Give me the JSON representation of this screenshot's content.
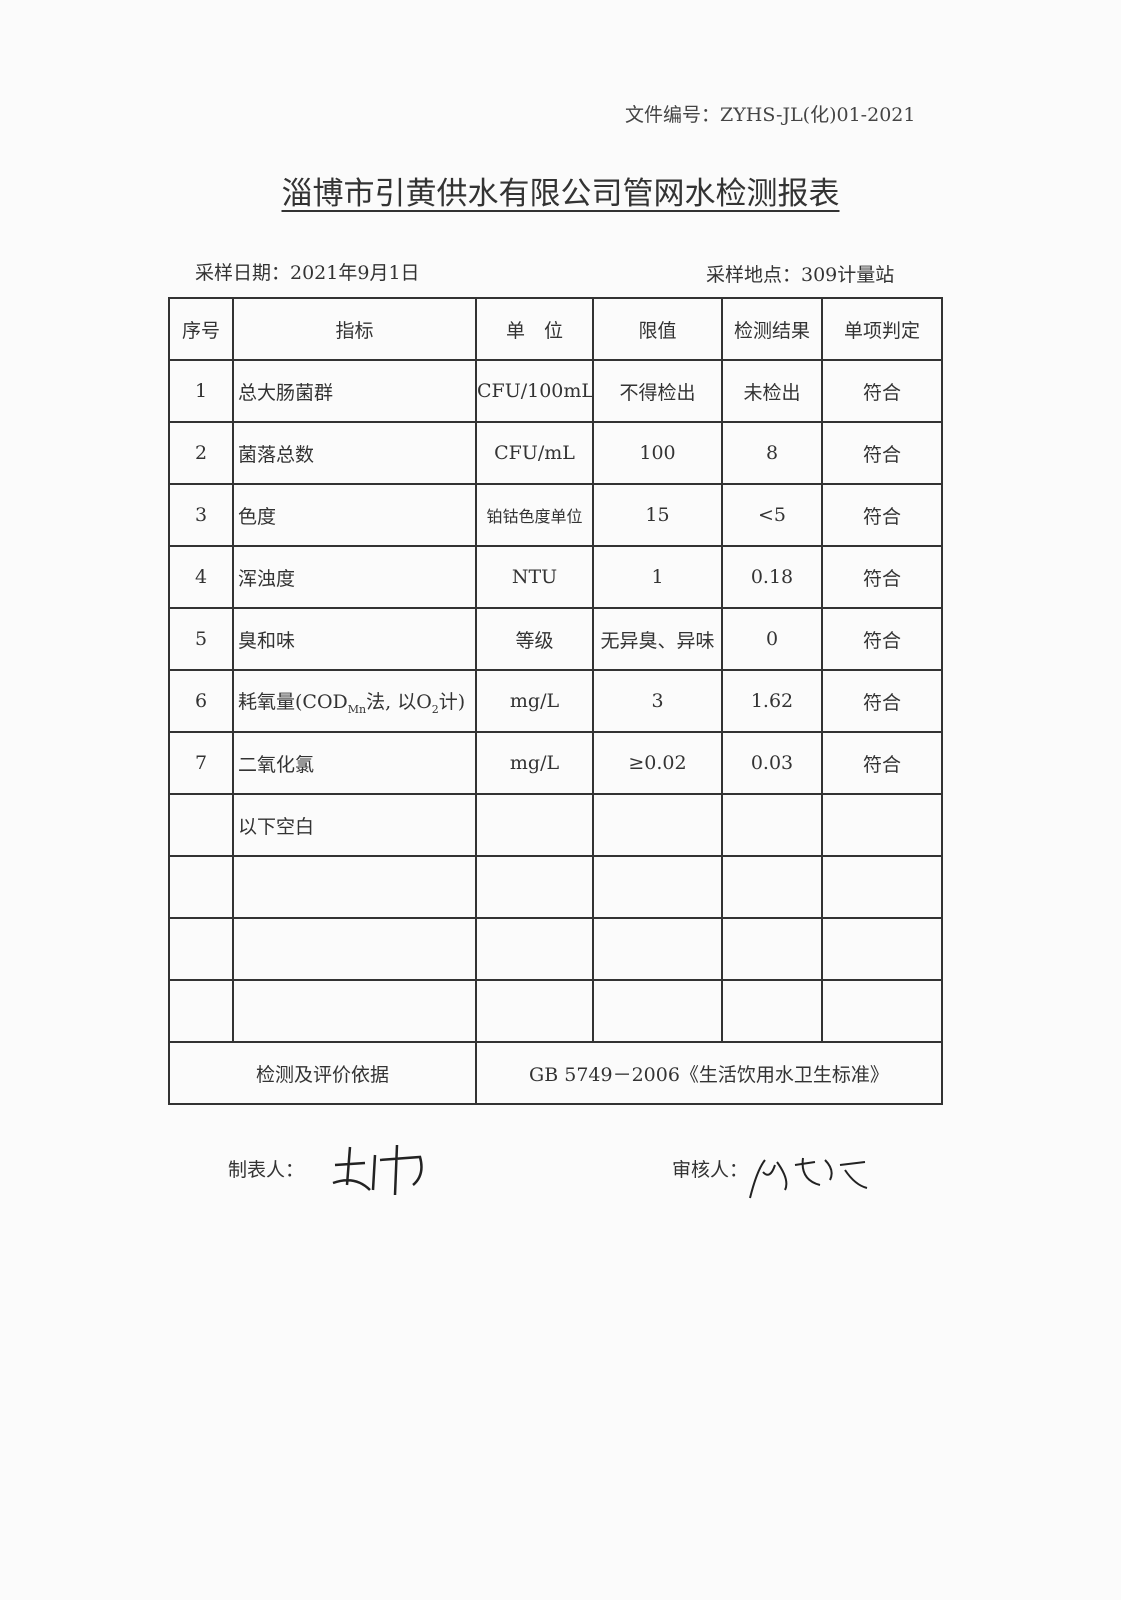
{
  "document_number": "文件编号：ZYHS-JL(化)01-2021",
  "title": "淄博市引黄供水有限公司管网水检测报表",
  "sampling_date": "采样日期：2021年9月1日",
  "sampling_site": "采样地点：309计量站",
  "table": {
    "headers": [
      "序号",
      "指标",
      "单　位",
      "限值",
      "检测结果",
      "单项判定"
    ],
    "rows": [
      {
        "no": "1",
        "indicator": "总大肠菌群",
        "unit": "CFU/100mL",
        "limit": "不得检出",
        "result": "未检出",
        "judgement": "符合"
      },
      {
        "no": "2",
        "indicator": "菌落总数",
        "unit": "CFU/mL",
        "limit": "100",
        "result": "8",
        "judgement": "符合"
      },
      {
        "no": "3",
        "indicator": "色度",
        "unit": "铂钴色度单位",
        "limit": "15",
        "result": "<5",
        "judgement": "符合"
      },
      {
        "no": "4",
        "indicator": "浑浊度",
        "unit": "NTU",
        "limit": "1",
        "result": "0.18",
        "judgement": "符合"
      },
      {
        "no": "5",
        "indicator": "臭和味",
        "unit": "等级",
        "limit": "无异臭、异味",
        "result": "0",
        "judgement": "符合"
      },
      {
        "no": "6",
        "indicator_parts": [
          "耗氧量(COD",
          "Mn",
          "法, 以O",
          "2",
          "计)"
        ],
        "unit": "mg/L",
        "limit": "3",
        "result": "1.62",
        "judgement": "符合"
      },
      {
        "no": "7",
        "indicator": "二氧化氯",
        "unit": "mg/L",
        "limit": "≥0.02",
        "result": "0.03",
        "judgement": "符合"
      }
    ],
    "blank_note": "以下空白",
    "basis_label": "检测及评价依据",
    "basis_value": "GB 5749－2006《生活饮用水卫生标准》"
  },
  "maker_label": "制表人：",
  "checker_label": "审核人："
}
